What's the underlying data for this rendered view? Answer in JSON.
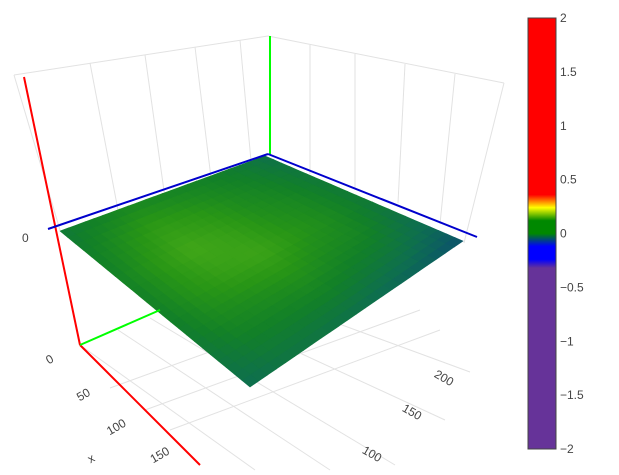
{
  "chart_data": {
    "type": "surface",
    "title": "",
    "colorscale": [
      [
        0.0,
        "#663399"
      ],
      [
        0.42,
        "#663399"
      ],
      [
        0.44,
        "#0000ff"
      ],
      [
        0.47,
        "#0000ff"
      ],
      [
        0.5,
        "#008800"
      ],
      [
        0.53,
        "#008800"
      ],
      [
        0.56,
        "#ffff00"
      ],
      [
        0.59,
        "#ff0000"
      ],
      [
        1.0,
        "#ff0000"
      ]
    ],
    "colorbar": {
      "range": [
        -2,
        2
      ],
      "ticks": [
        "2",
        "1.5",
        "1",
        "0.5",
        "0",
        "−0.5",
        "−1",
        "−1.5",
        "−2"
      ],
      "tick_values": [
        2,
        1.5,
        1,
        0.5,
        0,
        -0.5,
        -1,
        -1.5,
        -2
      ]
    },
    "axes": {
      "x": {
        "label": "x",
        "color": "#ff0000",
        "ticks": [
          "0",
          "50",
          "100",
          "150"
        ]
      },
      "y": {
        "label": "",
        "color": "#00ff00",
        "ticks": [
          "100",
          "150",
          "200"
        ]
      },
      "z": {
        "label": "",
        "color": "#0000ff",
        "ticks": [
          "0"
        ]
      }
    },
    "surface_values_grid": [
      [
        -0.1,
        -0.06,
        -0.04,
        -0.05,
        -0.08,
        -0.12,
        -0.18
      ],
      [
        -0.05,
        0.05,
        0.1,
        0.08,
        0.02,
        -0.06,
        -0.14
      ],
      [
        0.0,
        0.15,
        0.25,
        0.18,
        0.05,
        -0.05,
        -0.14
      ],
      [
        -0.02,
        0.1,
        0.18,
        0.22,
        0.08,
        -0.04,
        -0.16
      ],
      [
        -0.04,
        0.02,
        0.06,
        0.1,
        0.02,
        -0.08,
        -0.2
      ],
      [
        -0.08,
        -0.04,
        0.0,
        0.02,
        -0.02,
        -0.12,
        -0.24
      ],
      [
        -0.16,
        -0.12,
        -0.1,
        -0.1,
        -0.14,
        -0.2,
        -0.3
      ]
    ],
    "grid": true,
    "legend": "colorbar-right"
  }
}
